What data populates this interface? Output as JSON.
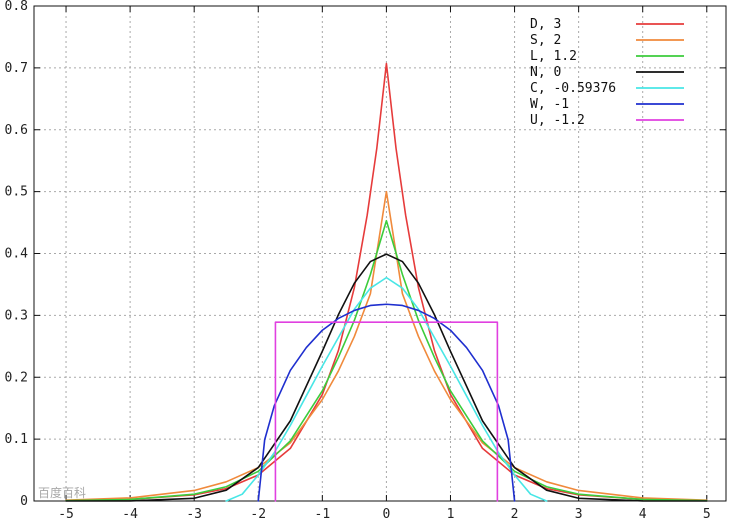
{
  "chart_data": {
    "type": "line",
    "title": "",
    "xlabel": "",
    "ylabel": "",
    "xlim": [
      -5.5,
      5.3
    ],
    "ylim": [
      0,
      0.8
    ],
    "x_ticks": [
      "-5",
      "-4",
      "-3",
      "-2",
      "-1",
      "0",
      "1",
      "2",
      "3",
      "4",
      "5"
    ],
    "y_ticks": [
      "0",
      "0.1",
      "0.2",
      "0.3",
      "0.4",
      "0.5",
      "0.6",
      "0.7",
      "0.8"
    ],
    "grid": true,
    "legend_position": "top-right",
    "series": [
      {
        "name": "D,  3",
        "color": "#e63b3b",
        "x": [
          -5,
          -4,
          -3,
          -2.5,
          -2,
          -1.5,
          -1,
          -0.75,
          -0.5,
          -0.3,
          -0.15,
          0,
          0.15,
          0.3,
          0.5,
          0.75,
          1,
          1.5,
          2,
          2.5,
          3,
          4,
          5
        ],
        "y": [
          0.0005,
          0.0025,
          0.01,
          0.02,
          0.042,
          0.085,
          0.172,
          0.243,
          0.345,
          0.462,
          0.57,
          0.707,
          0.57,
          0.462,
          0.345,
          0.243,
          0.172,
          0.085,
          0.042,
          0.02,
          0.01,
          0.0025,
          0.0005
        ]
      },
      {
        "name": "S,  2",
        "color": "#f08a3c",
        "x": [
          -5,
          -4,
          -3,
          -2.5,
          -2,
          -1.5,
          -1,
          -0.75,
          -0.5,
          -0.25,
          0,
          0.25,
          0.5,
          0.75,
          1,
          1.5,
          2,
          2.5,
          3,
          4,
          5
        ],
        "y": [
          0.0013,
          0.005,
          0.017,
          0.031,
          0.054,
          0.094,
          0.164,
          0.21,
          0.266,
          0.335,
          0.5,
          0.335,
          0.266,
          0.21,
          0.164,
          0.094,
          0.054,
          0.031,
          0.017,
          0.005,
          0.0013
        ]
      },
      {
        "name": "L,  1.2",
        "color": "#3ccc3c",
        "x": [
          -5,
          -4,
          -3,
          -2.5,
          -2,
          -1.5,
          -1,
          -0.75,
          -0.5,
          -0.25,
          0,
          0.25,
          0.5,
          0.75,
          1,
          1.5,
          2,
          2.5,
          3,
          4,
          5
        ],
        "y": [
          0.0005,
          0.0025,
          0.011,
          0.023,
          0.048,
          0.097,
          0.178,
          0.232,
          0.292,
          0.366,
          0.453,
          0.366,
          0.292,
          0.232,
          0.178,
          0.097,
          0.048,
          0.023,
          0.011,
          0.0025,
          0.0005
        ]
      },
      {
        "name": "N,  0",
        "color": "#111111",
        "x": [
          -5,
          -4,
          -3,
          -2.5,
          -2,
          -1.5,
          -1,
          -0.75,
          -0.5,
          -0.25,
          0,
          0.25,
          0.5,
          0.75,
          1,
          1.5,
          2,
          2.5,
          3,
          4,
          5
        ],
        "y": [
          1.5e-06,
          0.00013,
          0.0044,
          0.0175,
          0.054,
          0.1295,
          0.242,
          0.301,
          0.352,
          0.387,
          0.399,
          0.387,
          0.352,
          0.301,
          0.242,
          0.1295,
          0.054,
          0.0175,
          0.0044,
          0.00013,
          1.5e-06
        ]
      },
      {
        "name": "C, -0.59376",
        "color": "#48e6e6",
        "x": [
          -2.5,
          -2.25,
          -2,
          -1.75,
          -1.5,
          -1.25,
          -1,
          -0.75,
          -0.5,
          -0.25,
          0,
          0.25,
          0.5,
          0.75,
          1,
          1.25,
          1.5,
          1.75,
          2,
          2.25,
          2.5
        ],
        "y": [
          0.0,
          0.011,
          0.042,
          0.078,
          0.122,
          0.17,
          0.218,
          0.264,
          0.31,
          0.344,
          0.361,
          0.344,
          0.31,
          0.264,
          0.218,
          0.17,
          0.122,
          0.078,
          0.042,
          0.011,
          0.0
        ]
      },
      {
        "name": "W, -1",
        "color": "#1f2fcf",
        "x": [
          -2,
          -1.9,
          -1.75,
          -1.5,
          -1.25,
          -1,
          -0.75,
          -0.5,
          -0.25,
          0,
          0.25,
          0.5,
          0.75,
          1,
          1.25,
          1.5,
          1.75,
          1.9,
          2
        ],
        "y": [
          0.0,
          0.099,
          0.154,
          0.211,
          0.248,
          0.276,
          0.295,
          0.308,
          0.316,
          0.318,
          0.316,
          0.308,
          0.295,
          0.276,
          0.248,
          0.211,
          0.154,
          0.099,
          0.0
        ]
      },
      {
        "name": "U, -1.2",
        "color": "#e040e0",
        "x": [
          -1.732,
          -1.732,
          1.732,
          1.732
        ],
        "y": [
          0.0,
          0.289,
          0.289,
          0.0
        ]
      }
    ],
    "watermark": "百度百科"
  }
}
